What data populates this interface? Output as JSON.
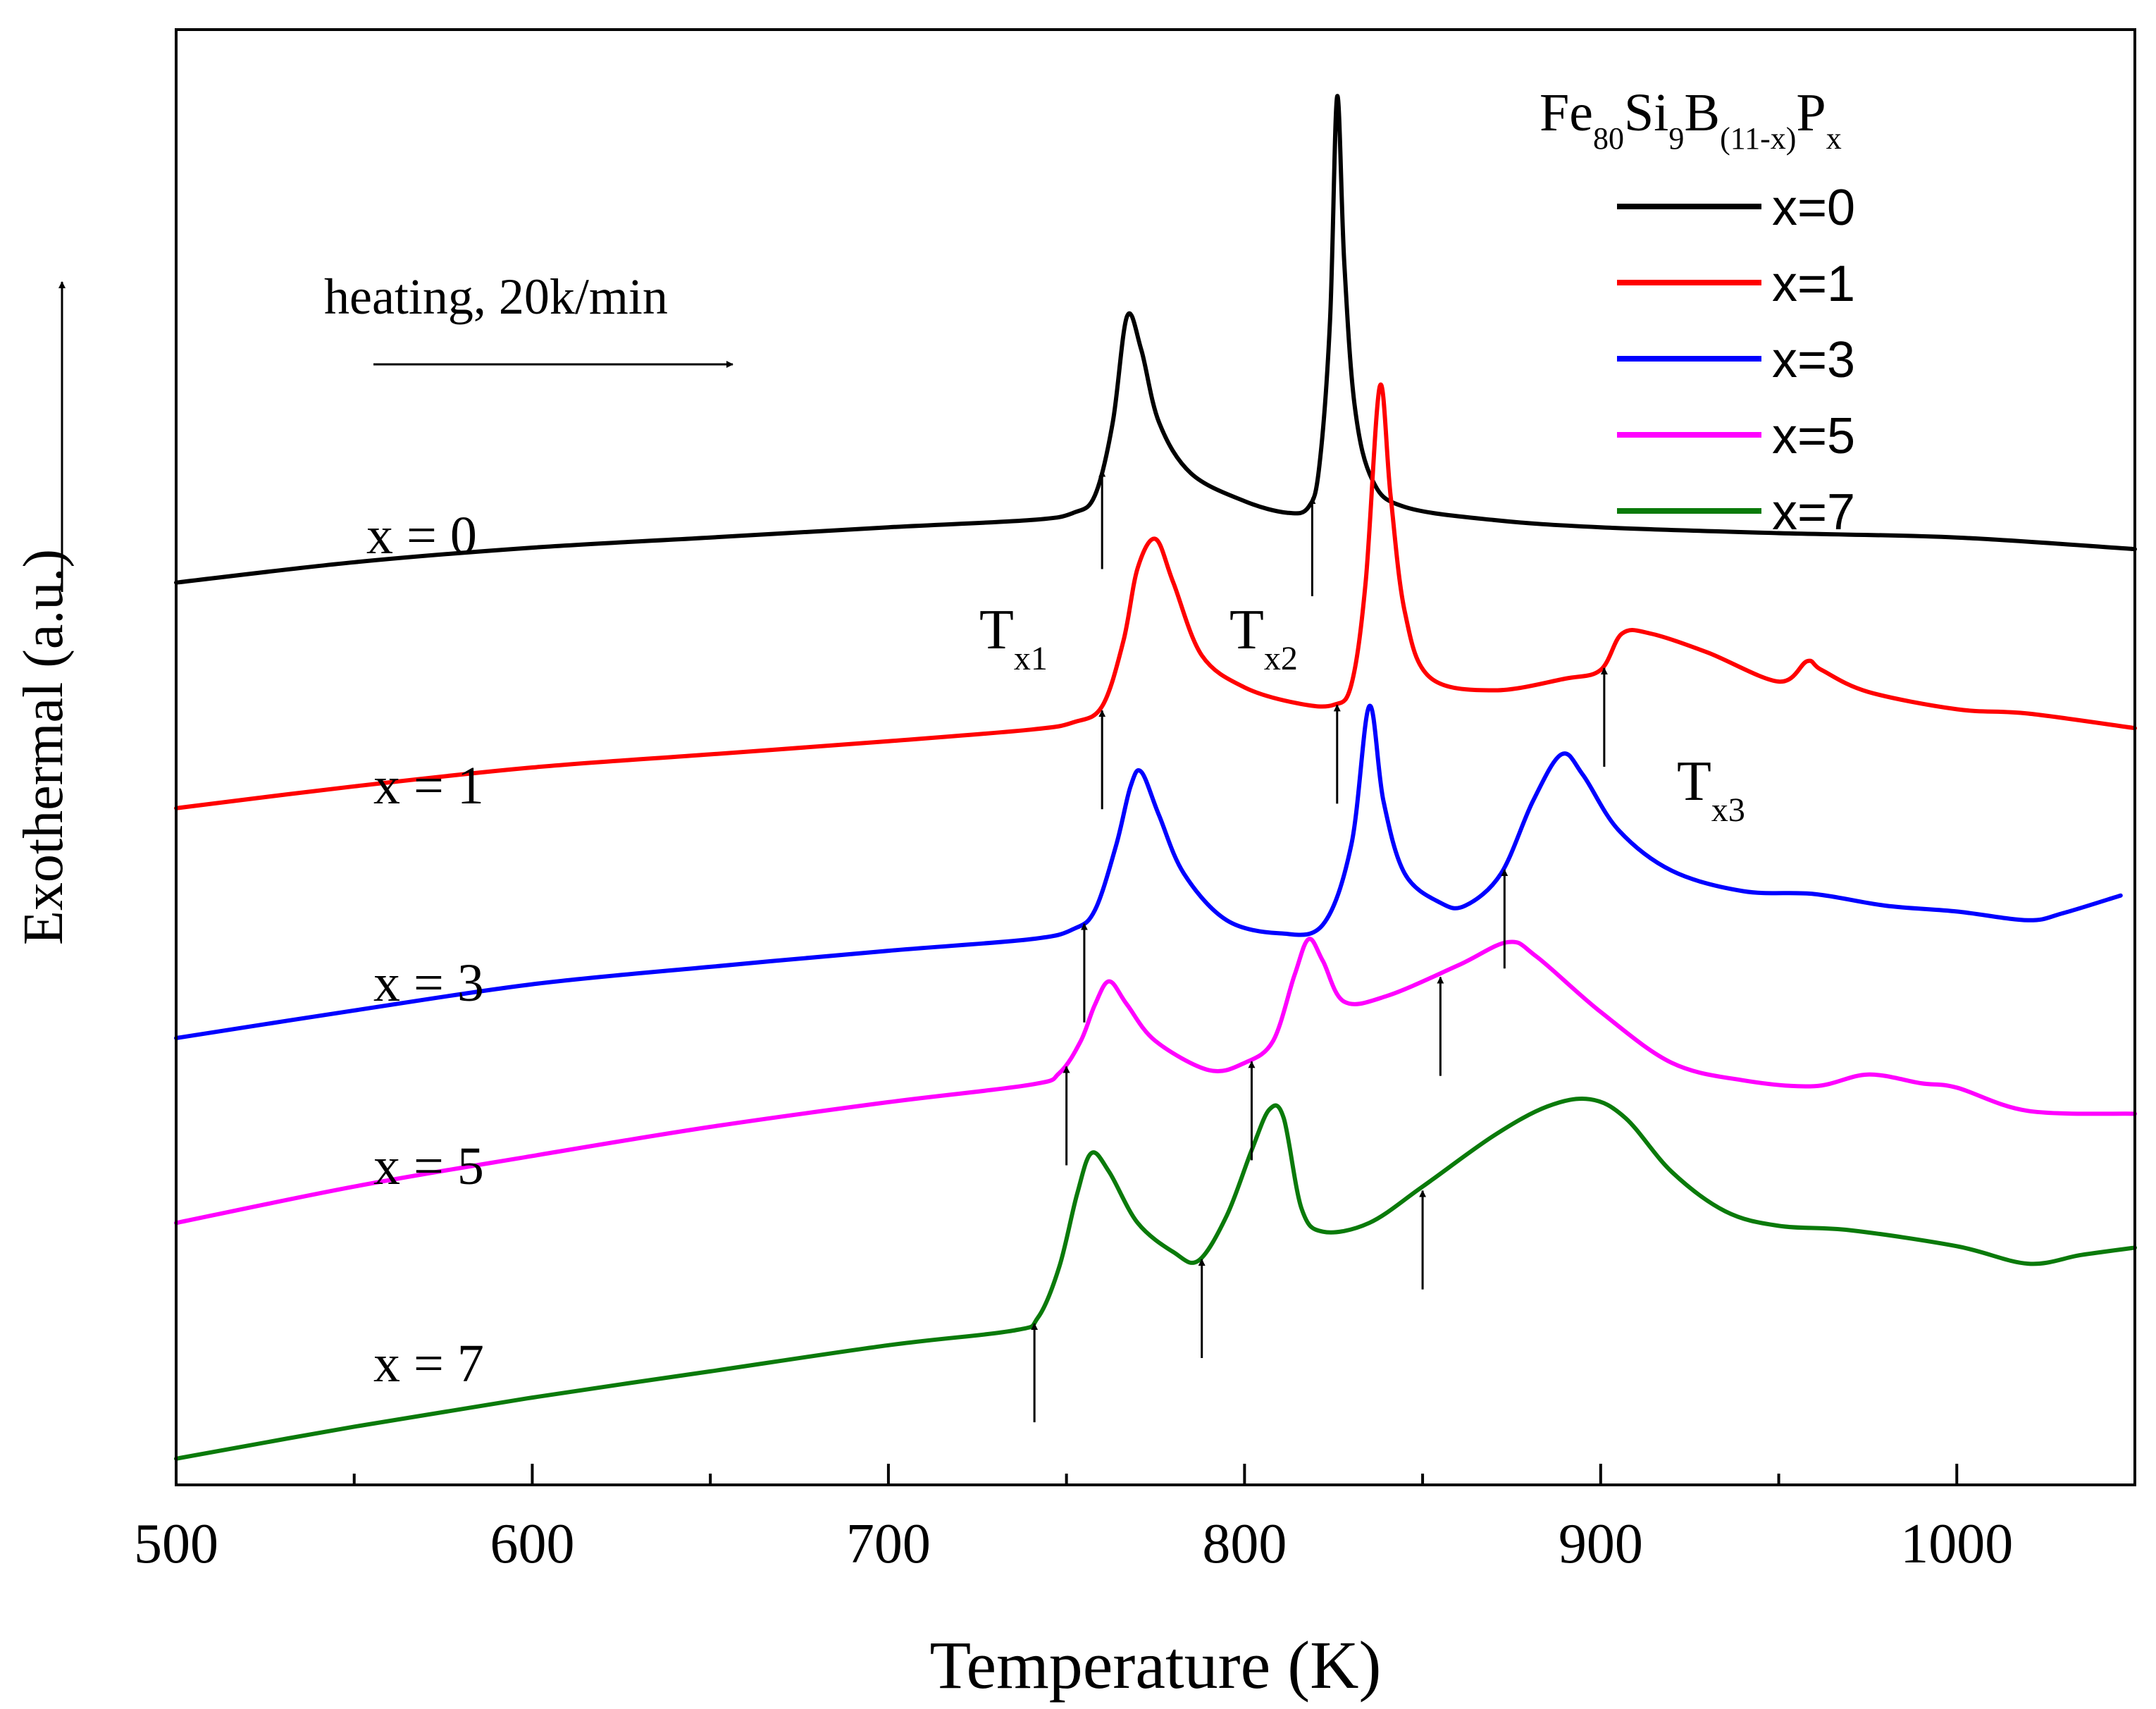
{
  "chart_data": {
    "type": "line",
    "xlabel": "Temperature (K)",
    "ylabel": "Exothermal (a.u.)",
    "xlim": [
      500,
      1050
    ],
    "ylim": [
      0,
      100
    ],
    "x_ticks": [
      500,
      600,
      700,
      800,
      900,
      1000
    ],
    "x_minor_ticks": [
      550,
      650,
      750,
      850,
      950,
      1050
    ],
    "grid": false,
    "legend": {
      "position": "top-right",
      "title": {
        "base1": "Fe",
        "sub1": "80",
        "base2": "Si",
        "sub2": "9",
        "base3": "B",
        "sub3": "(11-x)",
        "base4": "P",
        "sub4": "x"
      },
      "entries": [
        "x=0",
        "x=1",
        "x=3",
        "x=5",
        "x=7"
      ]
    },
    "annotations": {
      "heating": "heating, 20k/min",
      "Tx1": {
        "base": "T",
        "sub": "x1"
      },
      "Tx2": {
        "base": "T",
        "sub": "x2"
      },
      "Tx3": {
        "base": "T",
        "sub": "x3"
      }
    },
    "series": [
      {
        "name": "x=0",
        "label": "x = 0",
        "color": "#000000",
        "points": [
          [
            500,
            62.0
          ],
          [
            550,
            63.4
          ],
          [
            600,
            64.4
          ],
          [
            650,
            65.1
          ],
          [
            700,
            65.8
          ],
          [
            740,
            66.3
          ],
          [
            752,
            66.8
          ],
          [
            758,
            68
          ],
          [
            763,
            73
          ],
          [
            767,
            80.3
          ],
          [
            771,
            78
          ],
          [
            776,
            73
          ],
          [
            785,
            69.5
          ],
          [
            800,
            67.6
          ],
          [
            812,
            66.8
          ],
          [
            818,
            67.2
          ],
          [
            821,
            70
          ],
          [
            824,
            80
          ],
          [
            826,
            95.4
          ],
          [
            828,
            84
          ],
          [
            831,
            74
          ],
          [
            836,
            69
          ],
          [
            845,
            67.2
          ],
          [
            870,
            66.3
          ],
          [
            900,
            65.8
          ],
          [
            950,
            65.4
          ],
          [
            1000,
            65.1
          ],
          [
            1050,
            64.3
          ]
        ],
        "arrows": [
          760,
          819
        ]
      },
      {
        "name": "x=1",
        "label": "x = 1",
        "color": "#ff0000",
        "points": [
          [
            500,
            46.5
          ],
          [
            550,
            48.0
          ],
          [
            600,
            49.3
          ],
          [
            650,
            50.2
          ],
          [
            700,
            51.1
          ],
          [
            740,
            51.9
          ],
          [
            752,
            52.4
          ],
          [
            760,
            53.5
          ],
          [
            766,
            58
          ],
          [
            770,
            63
          ],
          [
            775,
            65.0
          ],
          [
            780,
            62
          ],
          [
            788,
            57
          ],
          [
            800,
            54.8
          ],
          [
            815,
            53.7
          ],
          [
            825,
            53.6
          ],
          [
            830,
            55
          ],
          [
            834,
            62
          ],
          [
            838,
            75.5
          ],
          [
            841,
            68
          ],
          [
            845,
            60
          ],
          [
            852,
            55.5
          ],
          [
            870,
            54.6
          ],
          [
            890,
            55.4
          ],
          [
            900,
            56
          ],
          [
            906,
            58.5
          ],
          [
            914,
            58.5
          ],
          [
            930,
            57.2
          ],
          [
            950,
            55.2
          ],
          [
            958,
            56.6
          ],
          [
            962,
            56.0
          ],
          [
            975,
            54.5
          ],
          [
            1000,
            53.3
          ],
          [
            1020,
            53.0
          ],
          [
            1050,
            52.0
          ]
        ],
        "arrows": [
          760,
          826,
          901
        ]
      },
      {
        "name": "x=3",
        "label": "x = 3",
        "color": "#0000ff",
        "points": [
          [
            500,
            30.7
          ],
          [
            550,
            32.6
          ],
          [
            600,
            34.4
          ],
          [
            650,
            35.6
          ],
          [
            700,
            36.7
          ],
          [
            740,
            37.5
          ],
          [
            752,
            38.2
          ],
          [
            758,
            39.5
          ],
          [
            764,
            44
          ],
          [
            768,
            48
          ],
          [
            771,
            49.0
          ],
          [
            776,
            46
          ],
          [
            783,
            42
          ],
          [
            795,
            38.8
          ],
          [
            810,
            37.9
          ],
          [
            822,
            38.5
          ],
          [
            830,
            44
          ],
          [
            835,
            53.5
          ],
          [
            839,
            47
          ],
          [
            845,
            42
          ],
          [
            855,
            40.0
          ],
          [
            862,
            39.8
          ],
          [
            872,
            42
          ],
          [
            881,
            47
          ],
          [
            889,
            50.2
          ],
          [
            895,
            48.8
          ],
          [
            905,
            45
          ],
          [
            920,
            42.2
          ],
          [
            940,
            40.8
          ],
          [
            960,
            40.6
          ],
          [
            980,
            39.8
          ],
          [
            1000,
            39.4
          ],
          [
            1020,
            38.8
          ],
          [
            1030,
            39.3
          ],
          [
            1046,
            40.5
          ]
        ],
        "arrows": [
          755,
          873
        ]
      },
      {
        "name": "x=5",
        "label": "x = 5",
        "color": "#ff00ff",
        "points": [
          [
            500,
            18.0
          ],
          [
            550,
            20.5
          ],
          [
            600,
            22.6
          ],
          [
            650,
            24.6
          ],
          [
            700,
            26.3
          ],
          [
            740,
            27.5
          ],
          [
            748,
            28.3
          ],
          [
            754,
            30.5
          ],
          [
            758,
            33
          ],
          [
            762,
            34.6
          ],
          [
            767,
            33
          ],
          [
            775,
            30.5
          ],
          [
            790,
            28.5
          ],
          [
            800,
            29.0
          ],
          [
            808,
            30.5
          ],
          [
            814,
            35
          ],
          [
            818,
            37.5
          ],
          [
            822,
            36
          ],
          [
            828,
            33.2
          ],
          [
            840,
            33.6
          ],
          [
            860,
            35.7
          ],
          [
            874,
            37.3
          ],
          [
            882,
            36.3
          ],
          [
            900,
            32.5
          ],
          [
            920,
            29
          ],
          [
            940,
            27.8
          ],
          [
            960,
            27.4
          ],
          [
            975,
            28.2
          ],
          [
            990,
            27.6
          ],
          [
            1000,
            27.3
          ],
          [
            1020,
            25.7
          ],
          [
            1050,
            25.5
          ]
        ],
        "arrows": [
          750,
          802,
          855
        ]
      },
      {
        "name": "x=7",
        "label": "x = 7",
        "color": "#0a7a0a",
        "points": [
          [
            500,
            1.8
          ],
          [
            550,
            4.0
          ],
          [
            600,
            6.0
          ],
          [
            650,
            7.8
          ],
          [
            700,
            9.6
          ],
          [
            735,
            10.6
          ],
          [
            742,
            11.5
          ],
          [
            748,
            15
          ],
          [
            753,
            20
          ],
          [
            757,
            22.8
          ],
          [
            762,
            21.5
          ],
          [
            770,
            18.0
          ],
          [
            780,
            16.0
          ],
          [
            787,
            15.4
          ],
          [
            795,
            18.5
          ],
          [
            802,
            23
          ],
          [
            807,
            25.8
          ],
          [
            811,
            25.2
          ],
          [
            816,
            19
          ],
          [
            822,
            17.4
          ],
          [
            835,
            18.0
          ],
          [
            850,
            20.5
          ],
          [
            870,
            24
          ],
          [
            885,
            26
          ],
          [
            897,
            26.5
          ],
          [
            907,
            25.2
          ],
          [
            920,
            21.5
          ],
          [
            935,
            18.8
          ],
          [
            950,
            17.8
          ],
          [
            970,
            17.5
          ],
          [
            1000,
            16.4
          ],
          [
            1020,
            15.2
          ],
          [
            1035,
            15.8
          ],
          [
            1050,
            16.3
          ]
        ],
        "arrows": [
          741,
          788,
          850
        ]
      }
    ]
  }
}
